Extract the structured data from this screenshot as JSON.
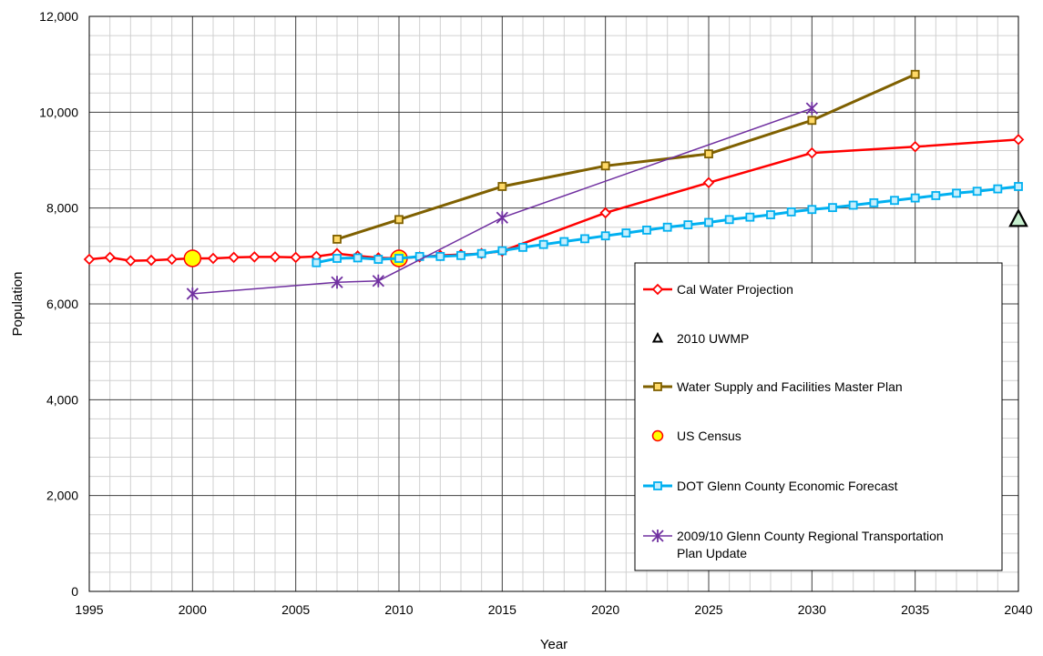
{
  "chart_data": {
    "type": "line",
    "xlabel": "Year",
    "ylabel": "Population",
    "xlim": [
      1995,
      2040
    ],
    "ylim": [
      0,
      12000
    ],
    "x_ticks": [
      "1995",
      "2000",
      "2005",
      "2010",
      "2015",
      "2020",
      "2025",
      "2030",
      "2035",
      "2040"
    ],
    "y_ticks": [
      "0",
      "2,000",
      "4,000",
      "6,000",
      "8,000",
      "10,000",
      "12,000"
    ],
    "grid": true,
    "legend_position": "bottom-right",
    "series": [
      {
        "name": "Cal Water Projection",
        "color": "#ff0000",
        "marker": "diamond",
        "points": [
          [
            1995,
            6930
          ],
          [
            1996,
            6970
          ],
          [
            1997,
            6900
          ],
          [
            1998,
            6910
          ],
          [
            1999,
            6930
          ],
          [
            2000,
            6950
          ],
          [
            2001,
            6950
          ],
          [
            2002,
            6970
          ],
          [
            2003,
            6980
          ],
          [
            2004,
            6980
          ],
          [
            2005,
            6970
          ],
          [
            2006,
            6990
          ],
          [
            2007,
            7050
          ],
          [
            2008,
            7000
          ],
          [
            2009,
            6960
          ],
          [
            2010,
            6950
          ],
          [
            2011,
            6980
          ],
          [
            2012,
            7010
          ],
          [
            2013,
            7030
          ],
          [
            2014,
            7050
          ],
          [
            2015,
            7100
          ],
          [
            2020,
            7900
          ],
          [
            2025,
            8530
          ],
          [
            2030,
            9150
          ],
          [
            2035,
            9280
          ],
          [
            2040,
            9430
          ]
        ]
      },
      {
        "name": "2010 UWMP",
        "color": "#00b050",
        "marker": "triangle",
        "points": [
          [
            2040,
            7760
          ]
        ]
      },
      {
        "name": "Water Supply and Facilities Master Plan",
        "color": "#7f6000",
        "marker": "square",
        "points": [
          [
            2007,
            7350
          ],
          [
            2010,
            7760
          ],
          [
            2015,
            8450
          ],
          [
            2020,
            8880
          ],
          [
            2025,
            9130
          ],
          [
            2030,
            9830
          ],
          [
            2035,
            10790
          ]
        ]
      },
      {
        "name": "US Census",
        "color": "#ffff00",
        "marker": "circle",
        "points": [
          [
            2000,
            6950
          ],
          [
            2010,
            6950
          ]
        ]
      },
      {
        "name": "DOT Glenn County Economic Forecast",
        "color": "#00b0f0",
        "marker": "square",
        "points": [
          [
            2006,
            6860
          ],
          [
            2007,
            6950
          ],
          [
            2008,
            6960
          ],
          [
            2009,
            6930
          ],
          [
            2010,
            6950
          ],
          [
            2011,
            6990
          ],
          [
            2012,
            6990
          ],
          [
            2013,
            7010
          ],
          [
            2014,
            7050
          ],
          [
            2015,
            7110
          ],
          [
            2016,
            7180
          ],
          [
            2017,
            7240
          ],
          [
            2018,
            7300
          ],
          [
            2019,
            7360
          ],
          [
            2020,
            7420
          ],
          [
            2021,
            7480
          ],
          [
            2022,
            7540
          ],
          [
            2023,
            7600
          ],
          [
            2024,
            7650
          ],
          [
            2025,
            7700
          ],
          [
            2026,
            7760
          ],
          [
            2027,
            7810
          ],
          [
            2028,
            7860
          ],
          [
            2029,
            7920
          ],
          [
            2030,
            7970
          ],
          [
            2031,
            8010
          ],
          [
            2032,
            8060
          ],
          [
            2033,
            8110
          ],
          [
            2034,
            8160
          ],
          [
            2035,
            8210
          ],
          [
            2036,
            8260
          ],
          [
            2037,
            8310
          ],
          [
            2038,
            8350
          ],
          [
            2039,
            8400
          ],
          [
            2040,
            8450
          ]
        ]
      },
      {
        "name": "2009/10 Glenn County Regional Transportation Plan Update",
        "name_lines": [
          "2009/10 Glenn County Regional Transportation",
          "Plan Update"
        ],
        "color": "#7030a0",
        "marker": "star",
        "points": [
          [
            2000,
            6210
          ],
          [
            2007,
            6450
          ],
          [
            2009,
            6480
          ],
          [
            2015,
            7800
          ],
          [
            2030,
            10080
          ]
        ]
      }
    ]
  }
}
